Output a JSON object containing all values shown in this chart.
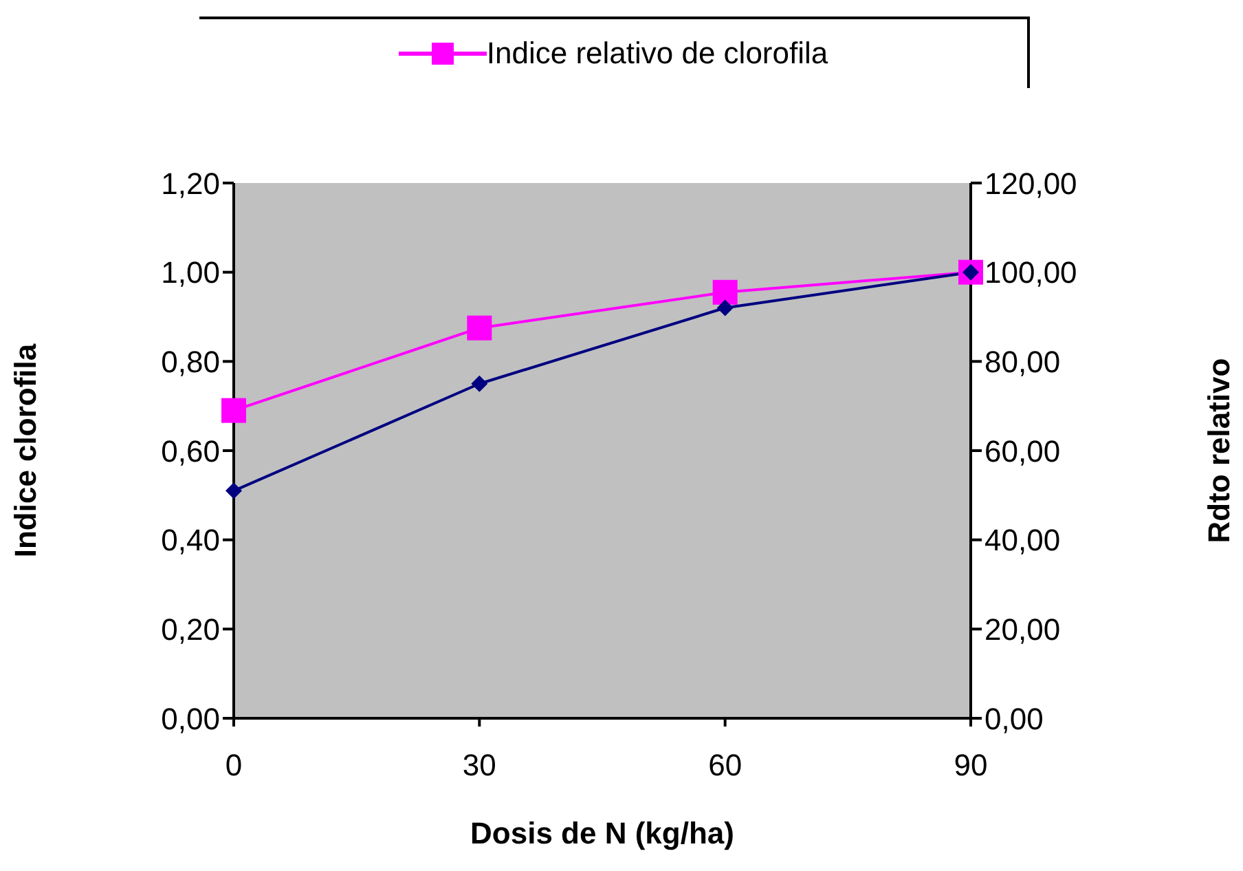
{
  "chart_data": {
    "type": "line",
    "categories": [
      "0",
      "30",
      "60",
      "90"
    ],
    "series": [
      {
        "name": "Indice relativo de clorofila",
        "color": "#ff00ff",
        "marker": "square",
        "values": [
          0.69,
          0.875,
          0.955,
          1.0
        ]
      },
      {
        "color": "#000080",
        "marker": "diamond",
        "axis": "y2",
        "values": [
          51,
          75,
          92,
          100
        ]
      }
    ],
    "xlabel": "Dosis de N (kg/ha)",
    "ylabel": "Indice clorofila",
    "y2label": "Rdto relativo",
    "ylim": [
      0,
      1.2
    ],
    "yticks": [
      {
        "value": 0,
        "label": "0,00"
      },
      {
        "value": 0.2,
        "label": "0,20"
      },
      {
        "value": 0.4,
        "label": "0,40"
      },
      {
        "value": 0.6,
        "label": "0,60"
      },
      {
        "value": 0.8,
        "label": "0,80"
      },
      {
        "value": 1.0,
        "label": "1,00"
      },
      {
        "value": 1.2,
        "label": "1,20"
      }
    ],
    "y2lim": [
      0,
      120
    ],
    "y2ticks": [
      {
        "value": 0,
        "label": "0,00"
      },
      {
        "value": 20,
        "label": "20,00"
      },
      {
        "value": 40,
        "label": "40,00"
      },
      {
        "value": 60,
        "label": "60,00"
      },
      {
        "value": 80,
        "label": "80,00"
      },
      {
        "value": 100,
        "label": "100,00"
      },
      {
        "value": 120,
        "label": "120,00"
      }
    ],
    "grid": false,
    "legend": "top"
  }
}
